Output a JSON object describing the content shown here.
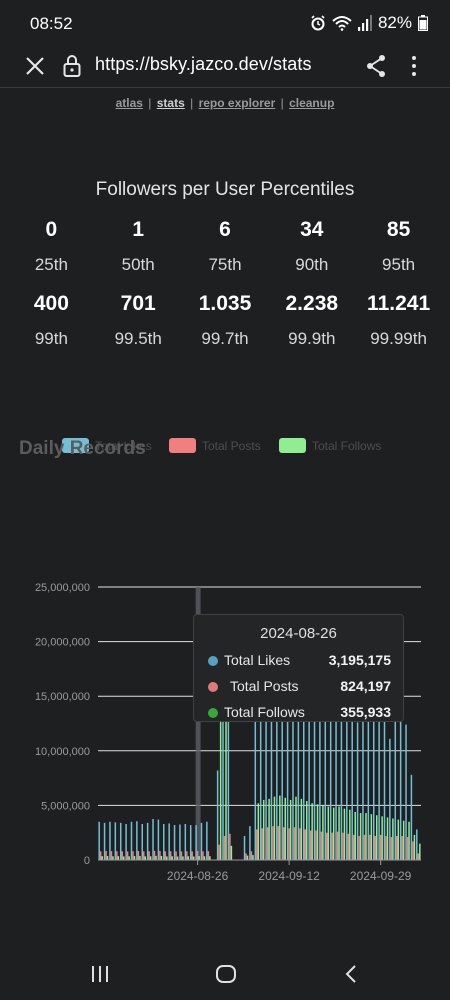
{
  "status": {
    "time": "08:52",
    "battery": "82%"
  },
  "browser": {
    "url": "https://bsky.jazco.dev/stats"
  },
  "nav": {
    "links": [
      "atlas",
      "stats",
      "repo explorer",
      "cleanup"
    ],
    "separator": "|"
  },
  "percentiles": {
    "title": "Followers per User Percentiles",
    "row1": [
      {
        "value": "0",
        "label": "25th"
      },
      {
        "value": "1",
        "label": "50th"
      },
      {
        "value": "6",
        "label": "75th"
      },
      {
        "value": "34",
        "label": "90th"
      },
      {
        "value": "85",
        "label": "95th"
      }
    ],
    "row2": [
      {
        "value": "400",
        "label": "99th"
      },
      {
        "value": "701",
        "label": "99.5th"
      },
      {
        "value": "1.035",
        "label": "99.7th"
      },
      {
        "value": "2.238",
        "label": "99.9th"
      },
      {
        "value": "11.241",
        "label": "99.99th"
      }
    ]
  },
  "chart_data": {
    "type": "bar",
    "title": "Daily Records",
    "legend": [
      "Total Likes",
      "Total Posts",
      "Total Follows"
    ],
    "colors": {
      "likes": "#73bfd6",
      "posts": "#f08080",
      "follows": "#90ee90",
      "grid": "#e0e0e0",
      "axis": "#9a9a9a"
    },
    "ylim": [
      0,
      25000000
    ],
    "yticks": [
      0,
      5000000,
      10000000,
      15000000,
      20000000,
      25000000
    ],
    "ytick_labels": [
      "0",
      "5,000,000",
      "10,000,000",
      "15,000,000",
      "20,000,000",
      "25,000,000"
    ],
    "xtick_labels": [
      "2024-08-26",
      "2024-09-12",
      "2024-09-29"
    ],
    "xtick_index": [
      18,
      35,
      52
    ],
    "highlight_index": 18,
    "series": [
      {
        "name": "Total Likes",
        "values": [
          3500000,
          3400000,
          3500000,
          3450000,
          3400000,
          3300000,
          3500000,
          3550000,
          3300000,
          3400000,
          3750000,
          3700000,
          3300000,
          3350000,
          3200000,
          3250000,
          3300000,
          3200000,
          3195175,
          3400000,
          3500000,
          0,
          8200000,
          12800000,
          15000000,
          0,
          0,
          2200000,
          3100000,
          14300000,
          16700000,
          17300000,
          20700000,
          20800000,
          17200000,
          16000000,
          20500000,
          17900000,
          17500000,
          16100000,
          16200000,
          15500000,
          14800000,
          15100000,
          16100000,
          15700000,
          15200000,
          13100000,
          12600000,
          13000000,
          13300000,
          13300000,
          13600000,
          13000000,
          11100000,
          12800000,
          13000000,
          12400000,
          7800000,
          2800000
        ]
      },
      {
        "name": "Total Posts",
        "values": [
          800000,
          820000,
          810000,
          800000,
          790000,
          780000,
          800000,
          820000,
          790000,
          800000,
          830000,
          820000,
          790000,
          800000,
          780000,
          790000,
          800000,
          780000,
          824197,
          790000,
          810000,
          0,
          1400000,
          2200000,
          2400000,
          0,
          0,
          600000,
          800000,
          2800000,
          2900000,
          3000000,
          3100000,
          3100000,
          3000000,
          2900000,
          3000000,
          2900000,
          2800000,
          2700000,
          2700000,
          2600000,
          2500000,
          2500000,
          2600000,
          2500000,
          2400000,
          2300000,
          2200000,
          2300000,
          2300000,
          2200000,
          2300000,
          2200000,
          2100000,
          2200000,
          2200000,
          2100000,
          1700000,
          600000
        ]
      },
      {
        "name": "Total Follows",
        "values": [
          350000,
          360000,
          340000,
          350000,
          330000,
          340000,
          360000,
          370000,
          330000,
          340000,
          380000,
          370000,
          330000,
          340000,
          320000,
          330000,
          340000,
          320000,
          355933,
          340000,
          350000,
          0,
          12800000,
          15000000,
          1300000,
          0,
          0,
          400000,
          450000,
          5200000,
          5500000,
          5600000,
          5800000,
          5900000,
          5700000,
          5500000,
          5800000,
          5600000,
          5400000,
          5200000,
          5100000,
          5000000,
          4900000,
          4800000,
          4900000,
          4700000,
          4600000,
          4400000,
          4300000,
          4300000,
          4200000,
          4100000,
          4000000,
          3900000,
          3800000,
          3700000,
          3600000,
          3500000,
          2300000,
          1500000
        ]
      }
    ],
    "tooltip": {
      "date": "2024-08-26",
      "rows": [
        {
          "name": "Total Likes",
          "value": "3,195,175",
          "color": "#5a9fc2"
        },
        {
          "name": "Total Posts",
          "value": "824,197",
          "color": "#e07a7a"
        },
        {
          "name": "Total Follows",
          "value": "355,933",
          "color": "#3aa53a"
        }
      ]
    }
  }
}
